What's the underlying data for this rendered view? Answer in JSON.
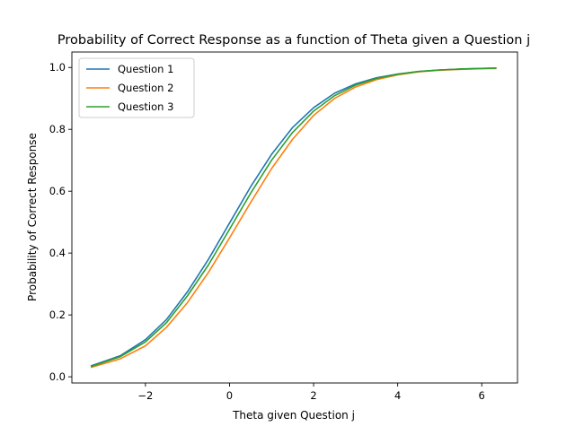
{
  "chart_data": {
    "type": "line",
    "title": "Probability of Correct Response as a function of Theta given a Question j",
    "xlabel": "Theta given Question j",
    "ylabel": "Probability of Correct Response",
    "xlim": [
      -3.75,
      6.85
    ],
    "ylim": [
      -0.02,
      1.05
    ],
    "xticks": [
      -2,
      0,
      2,
      4,
      6
    ],
    "yticks": [
      0.0,
      0.2,
      0.4,
      0.6,
      0.8,
      1.0
    ],
    "xtick_labels": [
      "−2",
      "0",
      "2",
      "4",
      "6"
    ],
    "ytick_labels": [
      "0.0",
      "0.2",
      "0.4",
      "0.6",
      "0.8",
      "1.0"
    ],
    "grid": false,
    "legend_position": "top-left",
    "x": [
      -3.3,
      -2.6,
      -2.0,
      -1.5,
      -1.0,
      -0.5,
      0.0,
      0.5,
      1.0,
      1.5,
      2.0,
      2.5,
      3.0,
      3.5,
      4.0,
      4.5,
      5.0,
      5.5,
      6.0,
      6.35
    ],
    "series": [
      {
        "name": "Question 1",
        "color": "#1f77b4",
        "values": [
          0.035,
          0.068,
          0.12,
          0.185,
          0.275,
          0.38,
          0.497,
          0.614,
          0.719,
          0.806,
          0.87,
          0.917,
          0.947,
          0.967,
          0.979,
          0.987,
          0.992,
          0.995,
          0.997,
          0.998
        ]
      },
      {
        "name": "Question 2",
        "color": "#ff7f0e",
        "values": [
          0.03,
          0.058,
          0.1,
          0.16,
          0.24,
          0.338,
          0.449,
          0.563,
          0.673,
          0.768,
          0.845,
          0.9,
          0.937,
          0.961,
          0.976,
          0.986,
          0.991,
          0.994,
          0.996,
          0.997
        ]
      },
      {
        "name": "Question 3",
        "color": "#2ca02c",
        "values": [
          0.033,
          0.065,
          0.113,
          0.175,
          0.262,
          0.362,
          0.477,
          0.593,
          0.7,
          0.79,
          0.859,
          0.909,
          0.943,
          0.965,
          0.978,
          0.987,
          0.992,
          0.995,
          0.997,
          0.998
        ]
      }
    ]
  }
}
